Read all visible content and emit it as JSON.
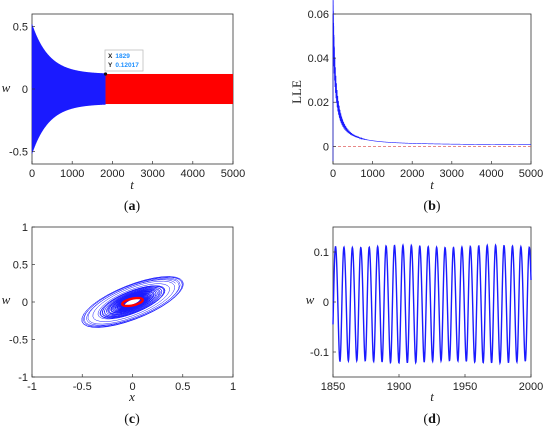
{
  "colors": {
    "series": "#1a1aff",
    "steady": "#ff0000",
    "reference": "#e06060",
    "tip_value": "#1e90ff",
    "axis": "#333333"
  },
  "chart_data": [
    {
      "id": "a",
      "type": "line",
      "label": "(a)",
      "xlabel": "t",
      "ylabel": "w",
      "xlim": [
        0,
        5000
      ],
      "ylim": [
        -0.6,
        0.6
      ],
      "xticks": [
        "0",
        "1000",
        "2000",
        "3000",
        "4000",
        "5000"
      ],
      "yticks": [
        "-0.5",
        "0",
        "0.5"
      ],
      "series": [
        {
          "x_range": [
            0,
            1829
          ],
          "envelope_start": 0.52,
          "envelope_end": 0.12017
        },
        {
          "x_range": [
            1829,
            5000
          ],
          "amplitude": 0.12017
        }
      ],
      "datatip": {
        "x_label": "X",
        "x_value": "1829",
        "y_label": "Y",
        "y_value": "0.12017"
      }
    },
    {
      "id": "b",
      "type": "line",
      "label": "(b)",
      "xlabel": "t",
      "ylabel": "LLE",
      "xlim": [
        0,
        5000
      ],
      "ylim": [
        -0.008,
        0.06
      ],
      "xticks": [
        "0",
        "1000",
        "2000",
        "3000",
        "4000",
        "5000"
      ],
      "yticks": [
        "0",
        "0.02",
        "0.04",
        "0.06"
      ],
      "series": [
        {
          "peak": 0.06,
          "decay_to": 0.0005
        }
      ],
      "reference_line": 0
    },
    {
      "id": "c",
      "type": "line",
      "label": "(c)",
      "xlabel": "x",
      "ylabel": "w",
      "xlim": [
        -1,
        1
      ],
      "ylim": [
        -1,
        1
      ],
      "xticks": [
        "-1",
        "-0.5",
        "0",
        "0.5",
        "1"
      ],
      "yticks": [
        "-1",
        "-0.5",
        "0",
        "0.5",
        "1"
      ],
      "series": [
        {
          "x_extent": 0.7,
          "w_extent": 0.55
        },
        {
          "x_extent": 0.12,
          "w_extent": 0.1
        }
      ]
    },
    {
      "id": "d",
      "type": "line",
      "label": "(d)",
      "xlabel": "t",
      "ylabel": "w",
      "xlim": [
        1850,
        2000
      ],
      "ylim": [
        -0.15,
        0.15
      ],
      "xticks": [
        "1850",
        "1900",
        "1950",
        "2000"
      ],
      "yticks": [
        "-0.1",
        "0",
        "0.1"
      ],
      "series": [
        {
          "amplitude": 0.115,
          "cycles": 23.5
        }
      ]
    }
  ]
}
